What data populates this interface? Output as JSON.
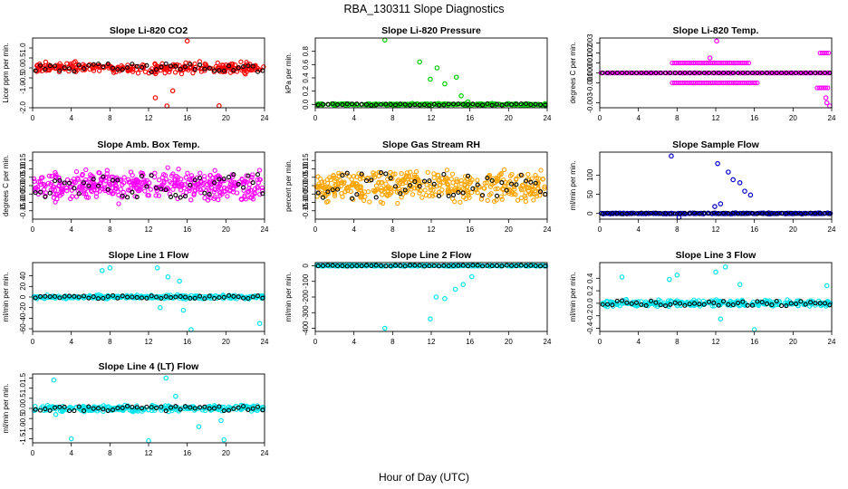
{
  "title": "RBA_130311  Slope Diagnostics",
  "xlabel": "Hour of Day (UTC)",
  "colors": {
    "red": "#ff0000",
    "green": "#00cc00",
    "magenta": "#ff00ff",
    "orange": "#ffa500",
    "blue": "#0000cc",
    "cyan": "#00e5ee",
    "black": "#000000"
  },
  "chart_data": [
    {
      "type": "scatter",
      "title": "Slope Li-820 CO2",
      "ylabel": "Licor ppm per min.",
      "xlim": [
        0,
        24
      ],
      "xticks": [
        0,
        4,
        8,
        12,
        16,
        20,
        24
      ],
      "ylim": [
        -2.0,
        1.5
      ],
      "yticks": [
        -2.0,
        -1.0,
        -0.5,
        0.0,
        0.5,
        1.0
      ],
      "ytick_labels": [
        "-2.0",
        "-1.0",
        "-0.5",
        "0.0",
        "0.5",
        "1.0"
      ],
      "color": "red",
      "spread": 0.35,
      "outliers": [
        [
          16.0,
          1.35
        ],
        [
          12.7,
          -1.5
        ],
        [
          13.9,
          -2.05
        ],
        [
          19.3,
          -1.9
        ],
        [
          14.5,
          -1.15
        ]
      ]
    },
    {
      "type": "scatter",
      "title": "Slope Li-820 Pressure",
      "ylabel": "kPa per min.",
      "xlim": [
        0,
        24
      ],
      "xticks": [
        0,
        4,
        8,
        12,
        16,
        20,
        24
      ],
      "ylim": [
        -0.05,
        1.0
      ],
      "yticks": [
        0.0,
        0.2,
        0.4,
        0.6,
        0.8
      ],
      "ytick_labels": [
        "0.0",
        "0.2",
        "0.4",
        "0.6",
        "0.8"
      ],
      "color": "green",
      "spread": 0.02,
      "outliers": [
        [
          7.2,
          0.97
        ],
        [
          10.8,
          0.64
        ],
        [
          11.9,
          0.38
        ],
        [
          12.6,
          0.55
        ],
        [
          13.4,
          0.31
        ],
        [
          14.6,
          0.41
        ],
        [
          15.1,
          0.13
        ],
        [
          15.8,
          0.04
        ],
        [
          23.8,
          -0.05
        ]
      ]
    },
    {
      "type": "scatter",
      "title": "Slope Li-820 Temp.",
      "ylabel": "degrees C per min.",
      "xlim": [
        0,
        24
      ],
      "xticks": [
        0,
        4,
        8,
        12,
        16,
        20,
        24
      ],
      "ylim": [
        -0.0035,
        0.0035
      ],
      "yticks": [
        -0.003,
        -0.001,
        0.0,
        0.001,
        0.002,
        0.003
      ],
      "ytick_labels": [
        "-0.003",
        "-0.001",
        "0.000",
        "0.001",
        "0.002",
        "0.003"
      ],
      "color": "magenta",
      "spread": 0.0,
      "bands": [
        {
          "y": 0.001,
          "from": 7.5,
          "to": 15.5
        },
        {
          "y": -0.001,
          "from": 7.5,
          "to": 16.5
        },
        {
          "y": -0.0015,
          "from": 22.5,
          "to": 23.8
        },
        {
          "y": 0.002,
          "from": 22.8,
          "to": 23.8
        }
      ],
      "outliers": [
        [
          12.1,
          0.0032
        ],
        [
          11.4,
          0.0015
        ],
        [
          23.5,
          -0.003
        ],
        [
          23.4,
          -0.0025
        ],
        [
          23.8,
          -0.0034
        ]
      ]
    },
    {
      "type": "scatter",
      "title": "Slope Amb. Box Temp.",
      "ylabel": "degrees C per min.",
      "xlim": [
        0,
        24
      ],
      "xticks": [
        0,
        4,
        8,
        12,
        16,
        20,
        24
      ],
      "ylim": [
        -0.2,
        0.2
      ],
      "yticks": [
        -0.15,
        -0.1,
        -0.05,
        0.0,
        0.05,
        0.1,
        0.15
      ],
      "ytick_labels": [
        "-0.15",
        "-0.10",
        "-0.05",
        "0.00",
        "0.05",
        "0.10",
        "0.15"
      ],
      "color": "magenta",
      "spread": 0.12,
      "outliers": []
    },
    {
      "type": "scatter",
      "title": "Slope Gas Stream RH",
      "ylabel": "percent per min.",
      "xlim": [
        0,
        24
      ],
      "xticks": [
        0,
        4,
        8,
        12,
        16,
        20,
        24
      ],
      "ylim": [
        -0.2,
        0.2
      ],
      "yticks": [
        -0.15,
        -0.1,
        -0.05,
        0.0,
        0.05,
        0.1,
        0.15
      ],
      "ytick_labels": [
        "-0.15",
        "-0.10",
        "-0.05",
        "0.00",
        "0.05",
        "0.10",
        "0.15"
      ],
      "color": "orange",
      "spread": 0.13,
      "outliers": []
    },
    {
      "type": "scatter",
      "title": "Slope Sample Flow",
      "ylabel": "ml/min per min.",
      "xlim": [
        0,
        24
      ],
      "xticks": [
        0,
        4,
        8,
        12,
        16,
        20,
        24
      ],
      "ylim": [
        -15,
        160
      ],
      "yticks": [
        0,
        50,
        100
      ],
      "ytick_labels": [
        "0",
        "50",
        "100"
      ],
      "color": "blue",
      "spread": 2,
      "outliers": [
        [
          7.4,
          150
        ],
        [
          12.2,
          130
        ],
        [
          13.3,
          108
        ],
        [
          13.8,
          88
        ],
        [
          14.5,
          80
        ],
        [
          15.0,
          58
        ],
        [
          15.6,
          48
        ],
        [
          12.5,
          25
        ],
        [
          11.9,
          18
        ],
        [
          8.2,
          -12
        ]
      ]
    },
    {
      "type": "scatter",
      "title": "Slope Line 1 Flow",
      "ylabel": "ml/min per min.",
      "xlim": [
        0,
        24
      ],
      "xticks": [
        0,
        4,
        8,
        12,
        16,
        20,
        24
      ],
      "ylim": [
        -65,
        65
      ],
      "yticks": [
        -60,
        -40,
        -20,
        0,
        20,
        40
      ],
      "ytick_labels": [
        "-60",
        "-40",
        "-20",
        "0",
        "20",
        "40"
      ],
      "color": "cyan",
      "spread": 5,
      "outliers": [
        [
          7.2,
          50
        ],
        [
          8.0,
          55
        ],
        [
          12.9,
          55
        ],
        [
          14.0,
          38
        ],
        [
          15.2,
          30
        ],
        [
          16.4,
          -62
        ],
        [
          15.6,
          -25
        ],
        [
          23.5,
          -50
        ],
        [
          13.2,
          -20
        ]
      ]
    },
    {
      "type": "scatter",
      "title": "Slope Line 2 Flow",
      "ylabel": "ml/min per min.",
      "xlim": [
        0,
        24
      ],
      "xticks": [
        0,
        4,
        8,
        12,
        16,
        20,
        24
      ],
      "ylim": [
        -420,
        20
      ],
      "yticks": [
        -400,
        -300,
        -200,
        -100,
        0
      ],
      "ytick_labels": [
        "-400",
        "-300",
        "-200",
        "-100",
        "0"
      ],
      "color": "cyan",
      "spread": 5,
      "outliers": [
        [
          7.2,
          -400
        ],
        [
          11.9,
          -340
        ],
        [
          12.5,
          -200
        ],
        [
          13.4,
          -210
        ],
        [
          14.5,
          -150
        ],
        [
          15.3,
          -120
        ],
        [
          16.2,
          -70
        ]
      ]
    },
    {
      "type": "scatter",
      "title": "Slope Line 3 Flow",
      "ylabel": "ml/min per min.",
      "xlim": [
        0,
        24
      ],
      "xticks": [
        0,
        4,
        8,
        12,
        16,
        20,
        24
      ],
      "ylim": [
        -0.45,
        0.65
      ],
      "yticks": [
        -0.4,
        -0.2,
        0.0,
        0.2,
        0.4
      ],
      "ytick_labels": [
        "-0.4",
        "-0.2",
        "0.0",
        "0.2",
        "0.4"
      ],
      "color": "cyan",
      "spread": 0.07,
      "outliers": [
        [
          2.3,
          0.42
        ],
        [
          7.2,
          0.38
        ],
        [
          8.0,
          0.45
        ],
        [
          12.0,
          0.5
        ],
        [
          13.0,
          0.58
        ],
        [
          14.5,
          0.3
        ],
        [
          16.0,
          -0.45
        ],
        [
          12.5,
          -0.25
        ],
        [
          23.5,
          0.28
        ]
      ]
    },
    {
      "type": "scatter",
      "title": "Slope Line 4 (LT) Flow",
      "ylabel": "ml/min per min.",
      "xlim": [
        0,
        24
      ],
      "xticks": [
        0,
        4,
        8,
        12,
        16,
        20,
        24
      ],
      "ylim": [
        -1.7,
        1.7
      ],
      "yticks": [
        -1.5,
        -1.0,
        -0.5,
        0.0,
        0.5,
        1.0,
        1.5
      ],
      "ytick_labels": [
        "-1.5",
        "-1.0",
        "-0.5",
        "0.0",
        "0.5",
        "1.0",
        "1.5"
      ],
      "color": "cyan",
      "spread": 0.2,
      "outliers": [
        [
          2.2,
          1.4
        ],
        [
          4.0,
          -1.5
        ],
        [
          12.0,
          -1.6
        ],
        [
          13.8,
          1.5
        ],
        [
          17.2,
          -0.9
        ],
        [
          19.5,
          -0.6
        ],
        [
          19.8,
          -1.55
        ],
        [
          2.4,
          -0.3
        ],
        [
          14.8,
          0.6
        ]
      ]
    }
  ]
}
